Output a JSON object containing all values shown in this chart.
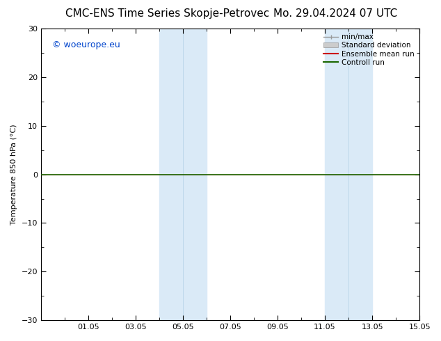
{
  "title_left": "CMC-ENS Time Series Skopje-Petrovec",
  "title_right": "Mo. 29.04.2024 07 UTC",
  "ylabel": "Temperature 850 hPa (°C)",
  "ylim": [
    -30,
    30
  ],
  "yticks": [
    -30,
    -20,
    -10,
    0,
    10,
    20,
    30
  ],
  "xlim": [
    0,
    16
  ],
  "xlabel_dates": [
    "01.05",
    "03.05",
    "05.05",
    "07.05",
    "09.05",
    "11.05",
    "13.05",
    "15.05"
  ],
  "xlabel_offsets": [
    2,
    4,
    6,
    8,
    10,
    12,
    14,
    16
  ],
  "shaded_regions": [
    {
      "start": 5,
      "end": 6
    },
    {
      "start": 6,
      "end": 7
    },
    {
      "start": 12,
      "end": 13
    },
    {
      "start": 13,
      "end": 14
    }
  ],
  "shade_color": "#daeaf7",
  "line_y": -0.4,
  "line_color_control": "#1a6600",
  "line_color_mean": "#cc0000",
  "line_color_minmax": "#999999",
  "line_color_stddev": "#bbbbbb",
  "watermark": "© woeurope.eu",
  "watermark_color": "#0044cc",
  "background_color": "#ffffff",
  "legend_minmax": "min/max",
  "legend_stddev": "Standard deviation",
  "legend_mean": "Ensemble mean run",
  "legend_control": "Controll run",
  "border_color": "#000000",
  "title_fontsize": 11,
  "axis_fontsize": 8,
  "legend_fontsize": 7.5
}
